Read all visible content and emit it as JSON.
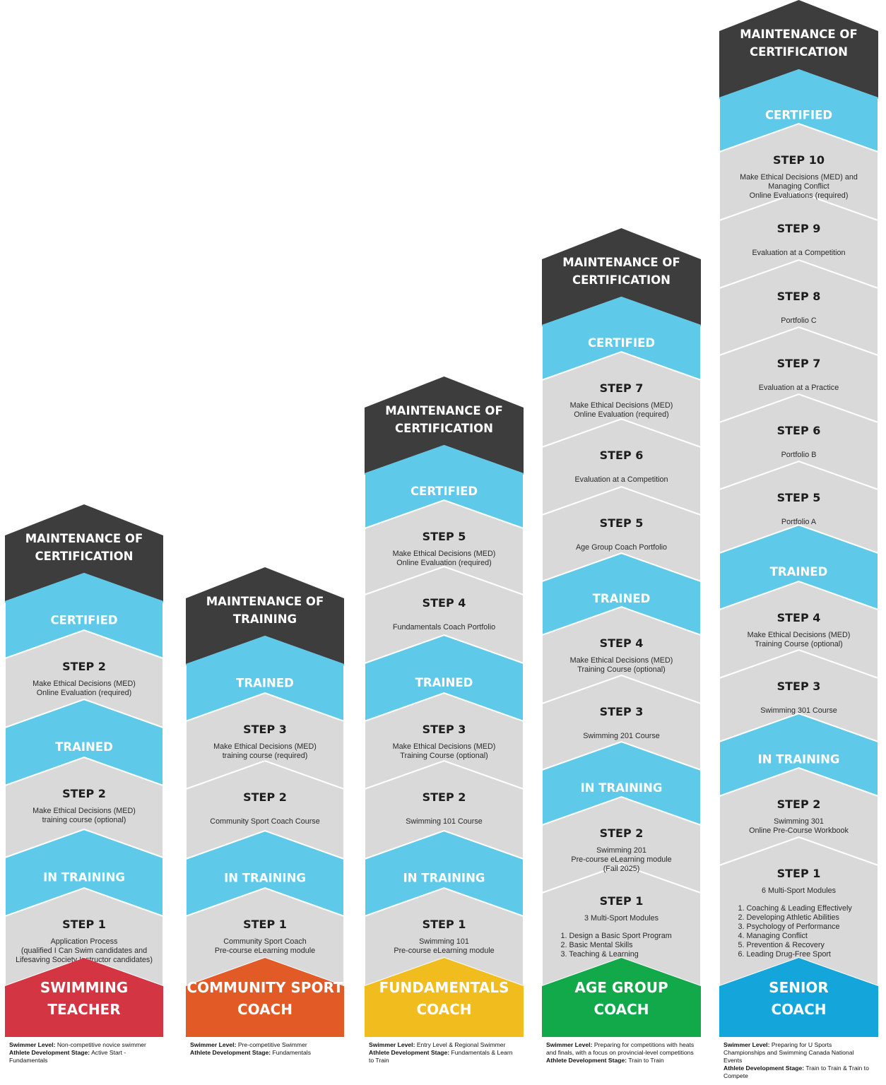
{
  "pathways": [
    {
      "title_lines": [
        "SWIMMING",
        "TEACHER"
      ],
      "title_color": "#d33642",
      "top_label_lines": [
        "MAINTENANCE OF",
        "CERTIFICATION"
      ],
      "segments": [
        {
          "kind": "header",
          "label": "CERTIFIED"
        },
        {
          "kind": "step",
          "label": "STEP 2",
          "desc": [
            "Make Ethical Decisions (MED)",
            "Online Evaluation (required)"
          ]
        },
        {
          "kind": "header",
          "label": "TRAINED"
        },
        {
          "kind": "step",
          "label": "STEP 2",
          "desc": [
            "Make Ethical Decisions (MED)",
            "training course (optional)"
          ]
        },
        {
          "kind": "header",
          "label": "IN TRAINING"
        },
        {
          "kind": "step",
          "label": "STEP 1",
          "desc": [
            "Application Process",
            "(qualified I Can Swim candidates and",
            "Lifesaving Society Instructor candidates)"
          ]
        }
      ],
      "swimmer_level_label": "Swimmer Level:",
      "swimmer_level": "Non-competitive novice swimmer",
      "stage_label": "Athlete Development Stage:",
      "stage": "Active Start - Fundamentals"
    },
    {
      "title_lines": [
        "COMMUNITY SPORT",
        "COACH"
      ],
      "title_color": "#e25a26",
      "top_label_lines": [
        "MAINTENANCE OF",
        "TRAINING"
      ],
      "segments": [
        {
          "kind": "header",
          "label": "TRAINED"
        },
        {
          "kind": "step",
          "label": "STEP 3",
          "desc": [
            "Make Ethical Decisions (MED)",
            "training course (required)"
          ]
        },
        {
          "kind": "step",
          "label": "STEP 2",
          "desc": [
            "Community Sport Coach Course"
          ]
        },
        {
          "kind": "header",
          "label": "IN TRAINING"
        },
        {
          "kind": "step",
          "label": "STEP 1",
          "desc": [
            "Community Sport Coach",
            "Pre-course eLearning module"
          ]
        }
      ],
      "swimmer_level_label": "Swimmer Level:",
      "swimmer_level": "Pre-competitive Swimmer",
      "stage_label": "Athlete Development Stage:",
      "stage": "Fundamentals"
    },
    {
      "title_lines": [
        "FUNDAMENTALS",
        "COACH"
      ],
      "title_color": "#f1bc1e",
      "top_label_lines": [
        "MAINTENANCE OF",
        "CERTIFICATION"
      ],
      "segments": [
        {
          "kind": "header",
          "label": "CERTIFIED"
        },
        {
          "kind": "step",
          "label": "STEP 5",
          "desc": [
            "Make Ethical Decisions (MED)",
            "Online Evaluation (required)"
          ]
        },
        {
          "kind": "step",
          "label": "STEP 4",
          "desc": [
            "Fundamentals Coach Portfolio"
          ]
        },
        {
          "kind": "header",
          "label": "TRAINED"
        },
        {
          "kind": "step",
          "label": "STEP 3",
          "desc": [
            "Make Ethical Decisions (MED)",
            "Training Course (optional)"
          ]
        },
        {
          "kind": "step",
          "label": "STEP 2",
          "desc": [
            "Swimming 101 Course"
          ]
        },
        {
          "kind": "header",
          "label": "IN TRAINING"
        },
        {
          "kind": "step",
          "label": "STEP 1",
          "desc": [
            "Swimming 101",
            "Pre-course eLearning module"
          ]
        }
      ],
      "swimmer_level_label": "Swimmer Level:",
      "swimmer_level": "Entry Level & Regional Swimmer",
      "stage_label": "Athlete Development Stage:",
      "stage": "Fundamentals & Learn to Train"
    },
    {
      "title_lines": [
        "AGE GROUP",
        "COACH"
      ],
      "title_color": "#12a94a",
      "top_label_lines": [
        "MAINTENANCE OF",
        "CERTIFICATION"
      ],
      "segments": [
        {
          "kind": "header",
          "label": "CERTIFIED"
        },
        {
          "kind": "step",
          "label": "STEP 7",
          "desc": [
            "Make Ethical Decisions (MED)",
            "Online Evaluation (required)"
          ]
        },
        {
          "kind": "step",
          "label": "STEP 6",
          "desc": [
            "Evaluation at a Competition"
          ]
        },
        {
          "kind": "step",
          "label": "STEP 5",
          "desc": [
            "Age Group Coach Portfolio"
          ]
        },
        {
          "kind": "header",
          "label": "TRAINED"
        },
        {
          "kind": "step",
          "label": "STEP 4",
          "desc": [
            "Make Ethical Decisions (MED)",
            "Training Course (optional)"
          ]
        },
        {
          "kind": "step",
          "label": "STEP 3",
          "desc": [
            "Swimming 201 Course"
          ]
        },
        {
          "kind": "header",
          "label": "IN TRAINING"
        },
        {
          "kind": "step",
          "label": "STEP 2",
          "desc": [
            "Swimming 201",
            "Pre-course eLearning module",
            "(Fall 2025)"
          ]
        },
        {
          "kind": "step",
          "label": "STEP 1",
          "desc": [
            "3 Multi-Sport Modules"
          ],
          "list": [
            "1. Design a Basic Sport Program",
            "2. Basic Mental Skills",
            "3. Teaching & Learning"
          ]
        }
      ],
      "swimmer_level_label": "Swimmer Level:",
      "swimmer_level": "Preparing for competitions with heats and finals, with a focus on provincial-level competitions",
      "stage_label": "Athlete Development Stage:",
      "stage": "Train to Train"
    },
    {
      "title_lines": [
        "SENIOR",
        "COACH"
      ],
      "title_color": "#14a6da",
      "top_label_lines": [
        "MAINTENANCE OF",
        "CERTIFICATION"
      ],
      "segments": [
        {
          "kind": "header",
          "label": "CERTIFIED"
        },
        {
          "kind": "step",
          "label": "STEP 10",
          "desc": [
            "Make Ethical Decisions (MED) and",
            "Managing Conflict",
            "Online Evaluations (required)"
          ]
        },
        {
          "kind": "step",
          "label": "STEP 9",
          "desc": [
            "Evaluation at a Competition"
          ]
        },
        {
          "kind": "step",
          "label": "STEP 8",
          "desc": [
            "Portfolio C"
          ]
        },
        {
          "kind": "step",
          "label": "STEP 7",
          "desc": [
            "Evaluation at a Practice"
          ]
        },
        {
          "kind": "step",
          "label": "STEP 6",
          "desc": [
            "Portfolio B"
          ]
        },
        {
          "kind": "step",
          "label": "STEP 5",
          "desc": [
            "Portfolio A"
          ]
        },
        {
          "kind": "header",
          "label": "TRAINED"
        },
        {
          "kind": "step",
          "label": "STEP 4",
          "desc": [
            "Make Ethical Decisions (MED)",
            "Training Course (optional)"
          ]
        },
        {
          "kind": "step",
          "label": "STEP 3",
          "desc": [
            "Swimming 301 Course"
          ]
        },
        {
          "kind": "header",
          "label": "IN TRAINING"
        },
        {
          "kind": "step",
          "label": "STEP 2",
          "desc": [
            "Swimming 301",
            "Online Pre-Course Workbook"
          ]
        },
        {
          "kind": "step",
          "label": "STEP 1",
          "desc": [
            "6 Multi-Sport Modules"
          ],
          "list": [
            "1. Coaching & Leading Effectively",
            "2. Developing Athletic Abilities",
            "3. Psychology of Performance",
            "4. Managing Conflict",
            "5. Prevention & Recovery",
            "6. Leading Drug-Free Sport"
          ]
        }
      ],
      "swimmer_level_label": "Swimmer Level:",
      "swimmer_level": "Preparing for U Sports Championships and Swimming Canada National Events",
      "stage_label": "Athlete Development Stage:",
      "stage": "Train to Train & Train to Compete"
    }
  ],
  "colors": {
    "dark": "#3d3d3d",
    "blue": "#5ec9e8",
    "grey": "#d9d9d9",
    "line": "#ffffff"
  }
}
